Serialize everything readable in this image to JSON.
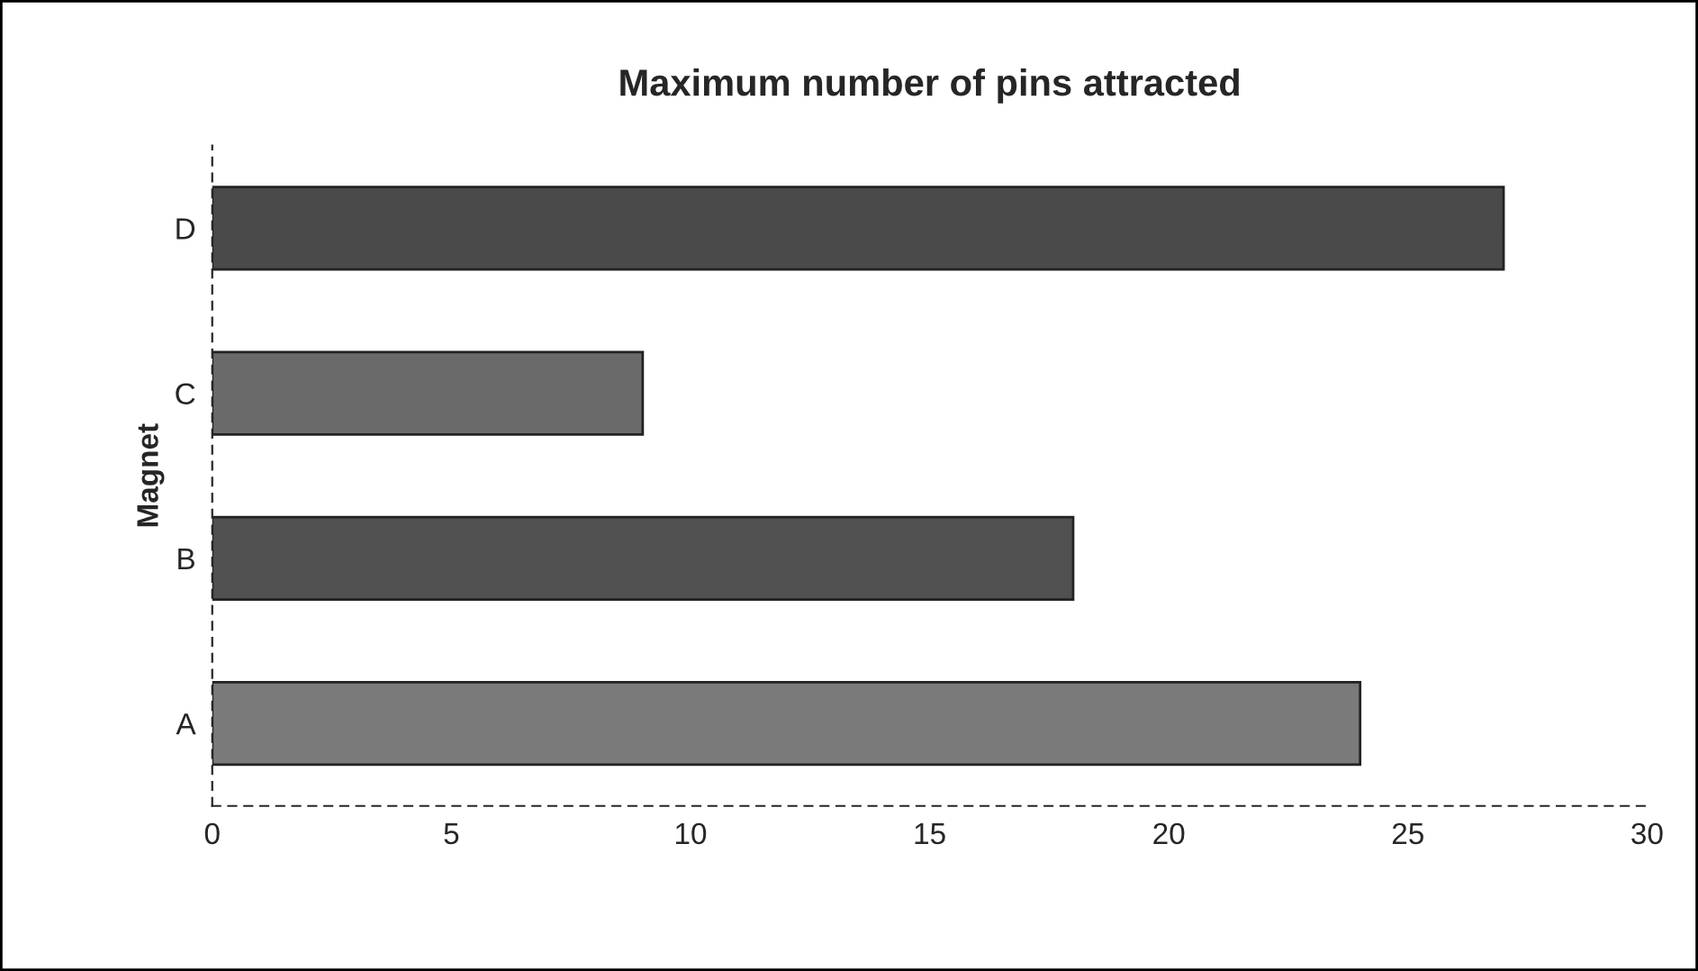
{
  "chart_data": {
    "type": "bar",
    "orientation": "horizontal",
    "title": "Maximum number of pins attracted",
    "ylabel": "Magnet",
    "categories": [
      "D",
      "C",
      "B",
      "A"
    ],
    "values": [
      27,
      9,
      18,
      24
    ],
    "colors": [
      "#4a4a4a",
      "#6a6a6a",
      "#505050",
      "#7a7a7a"
    ],
    "xlim": [
      0,
      30
    ],
    "xticks": [
      0,
      5,
      10,
      15,
      20,
      25,
      30
    ],
    "grid": false,
    "legend": false
  }
}
